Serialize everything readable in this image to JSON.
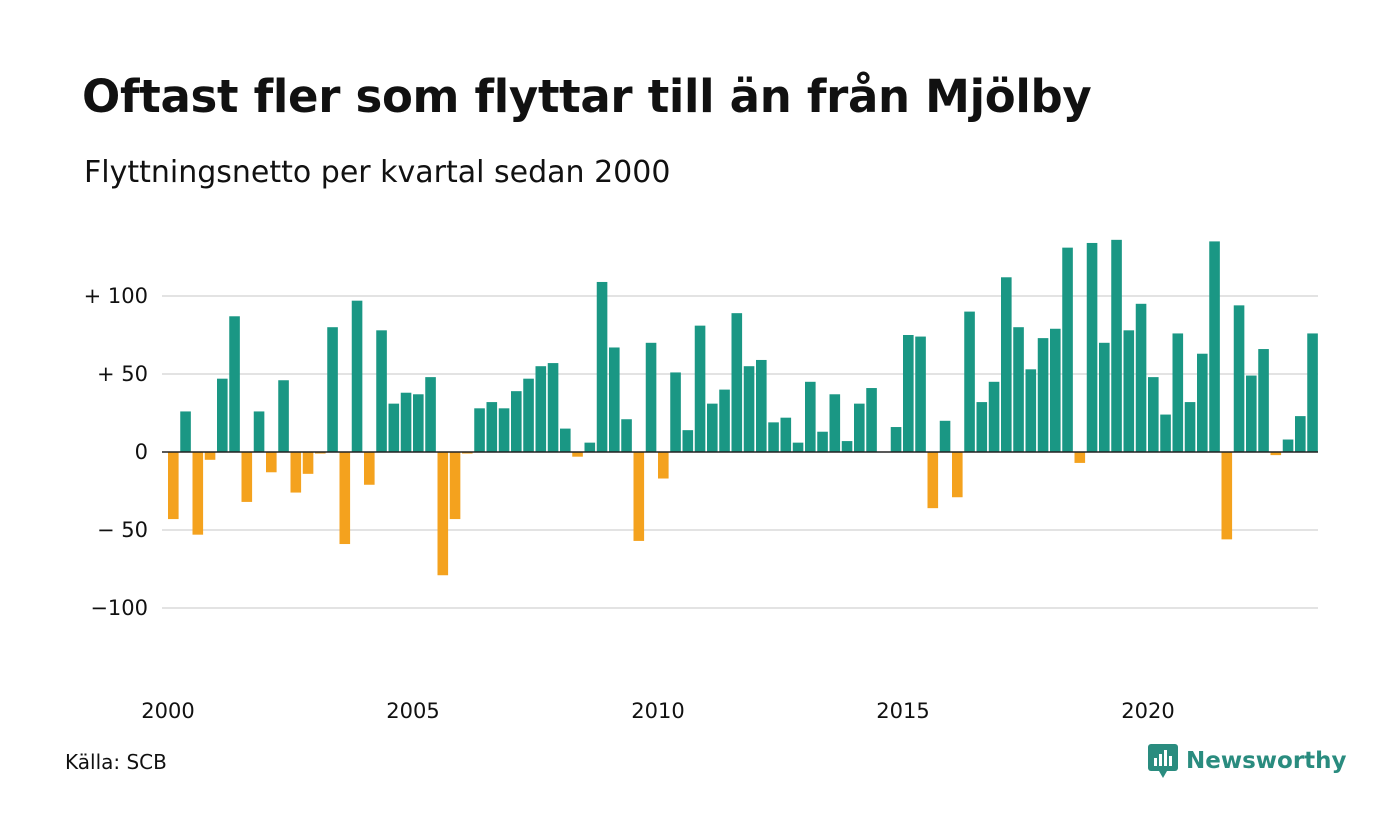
{
  "title": "Oftast fler som flyttar till än från Mjölby",
  "subtitle": "Flyttningsnetto per kvartal sedan 2000",
  "source": "Källa: SCB",
  "brand": "Newsworthy",
  "colors": {
    "positive": "#1a9784",
    "negative": "#f4a21e",
    "grid": "#e3e3e3",
    "baseline": "#222222",
    "brand": "#2a8c7f"
  },
  "chart_data": {
    "type": "bar",
    "title": "Oftast fler som flyttar till än från Mjölby",
    "subtitle": "Flyttningsnetto per kvartal sedan 2000",
    "xlabel": "",
    "ylabel": "",
    "ylim": [
      -125,
      140
    ],
    "grid": true,
    "y_ticks": [
      {
        "value": 100,
        "label": "+ 100"
      },
      {
        "value": 50,
        "label": "+  50"
      },
      {
        "value": 0,
        "label": "0"
      },
      {
        "value": -50,
        "label": "− 50"
      },
      {
        "value": -100,
        "label": "−100"
      }
    ],
    "x_ticks": [
      "2000",
      "2005",
      "2010",
      "2015",
      "2020"
    ],
    "start_year": 2000,
    "quarters_per_year": 4,
    "values": [
      -43,
      26,
      -53,
      -5,
      47,
      87,
      -32,
      26,
      -13,
      46,
      -26,
      -14,
      -1,
      80,
      -59,
      97,
      -21,
      78,
      31,
      38,
      37,
      48,
      -79,
      -43,
      -1,
      28,
      32,
      28,
      39,
      47,
      55,
      57,
      15,
      -3,
      6,
      109,
      67,
      21,
      -57,
      70,
      -17,
      51,
      14,
      81,
      31,
      40,
      89,
      55,
      59,
      19,
      22,
      6,
      45,
      13,
      37,
      7,
      31,
      41,
      0,
      16,
      75,
      74,
      -36,
      20,
      -29,
      90,
      32,
      45,
      112,
      80,
      53,
      73,
      79,
      131,
      -7,
      134,
      70,
      136,
      78,
      95,
      48,
      24,
      76,
      32,
      63,
      135,
      -56,
      94,
      49,
      66,
      -2,
      8,
      23,
      76
    ]
  }
}
